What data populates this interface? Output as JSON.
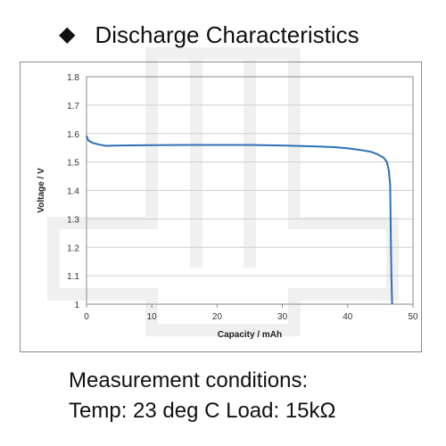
{
  "header": {
    "bullet": "◆",
    "title": "Discharge Characteristics"
  },
  "chart_data": {
    "type": "line",
    "title": "",
    "xlabel": "Capacity  /  mAh",
    "ylabel": "Voltage  /  V",
    "xlim": [
      0,
      50
    ],
    "ylim": [
      1,
      1.8
    ],
    "x_ticks": [
      "0",
      "10",
      "20",
      "30",
      "40",
      "50"
    ],
    "y_ticks": [
      "1",
      "1.1",
      "1.2",
      "1.3",
      "1.4",
      "1.5",
      "1.6",
      "1.7",
      "1.8"
    ],
    "grid": "horizontal",
    "legend": "none",
    "series": [
      {
        "color": "#2f6fb5",
        "x": [
          0,
          0.3,
          1,
          2,
          3,
          5,
          10,
          15,
          20,
          25,
          30,
          35,
          38,
          40,
          42,
          43.5,
          44.5,
          45.5,
          46,
          46.3,
          46.5,
          46.6,
          46.7,
          46.8
        ],
        "y": [
          1.592,
          1.575,
          1.567,
          1.561,
          1.557,
          1.558,
          1.559,
          1.56,
          1.56,
          1.56,
          1.558,
          1.555,
          1.552,
          1.548,
          1.542,
          1.536,
          1.528,
          1.515,
          1.5,
          1.47,
          1.42,
          1.25,
          1.1,
          1.0
        ]
      }
    ]
  },
  "conditions": {
    "line1": "Measurement conditions:",
    "line2": "Temp: 23 deg C   Load: 15kΩ"
  }
}
